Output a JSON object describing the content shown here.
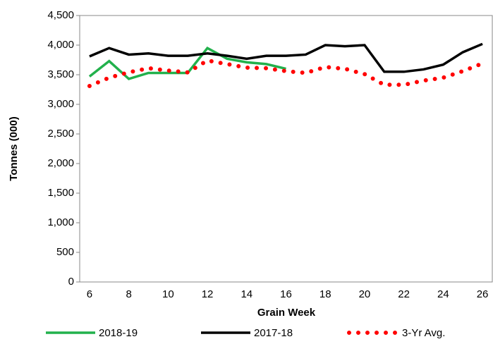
{
  "chart_data": {
    "type": "line",
    "x_label": "Grain Week",
    "y_label": "Tonnes (000)",
    "categories": [
      6,
      null,
      8,
      null,
      10,
      null,
      12,
      null,
      14,
      null,
      16,
      null,
      18,
      null,
      20,
      null,
      22,
      null,
      24,
      null,
      26
    ],
    "series": [
      {
        "name": "2018-19",
        "color": "#22b14c",
        "style": "solid",
        "values": [
          3470,
          3730,
          3430,
          3530,
          3530,
          3530,
          3950,
          3770,
          3710,
          3680,
          3600,
          null,
          null,
          null,
          null,
          null,
          null,
          null,
          null,
          null,
          null
        ]
      },
      {
        "name": "2017-18",
        "color": "#000000",
        "style": "solid",
        "values": [
          3810,
          3950,
          3840,
          3860,
          3820,
          3820,
          3860,
          3820,
          3770,
          3820,
          3820,
          3840,
          4000,
          3980,
          4000,
          3550,
          3550,
          3590,
          3670,
          3880,
          4020
        ]
      },
      {
        "name": "3-Yr Avg.",
        "color": "#ff0000",
        "style": "dotted",
        "values": [
          3310,
          3450,
          3540,
          3610,
          3570,
          3540,
          3740,
          3680,
          3620,
          3610,
          3560,
          3530,
          3630,
          3600,
          3510,
          3330,
          3330,
          3400,
          3450,
          3560,
          3690
        ]
      }
    ],
    "ylim": [
      0,
      4500
    ],
    "yticks": [
      0,
      500,
      {
        "value": 1000,
        "label": "1,000"
      },
      {
        "value": 1500,
        "label": "1,500"
      },
      {
        "value": 2000,
        "label": "2,000"
      },
      {
        "value": 2500,
        "label": "2,500"
      },
      {
        "value": 3000,
        "label": "3,000"
      },
      {
        "value": 3500,
        "label": "3,500"
      },
      {
        "value": 4000,
        "label": "4,000"
      },
      {
        "value": 4500,
        "label": "4,500"
      }
    ],
    "grid": false,
    "legend": "bottom"
  }
}
